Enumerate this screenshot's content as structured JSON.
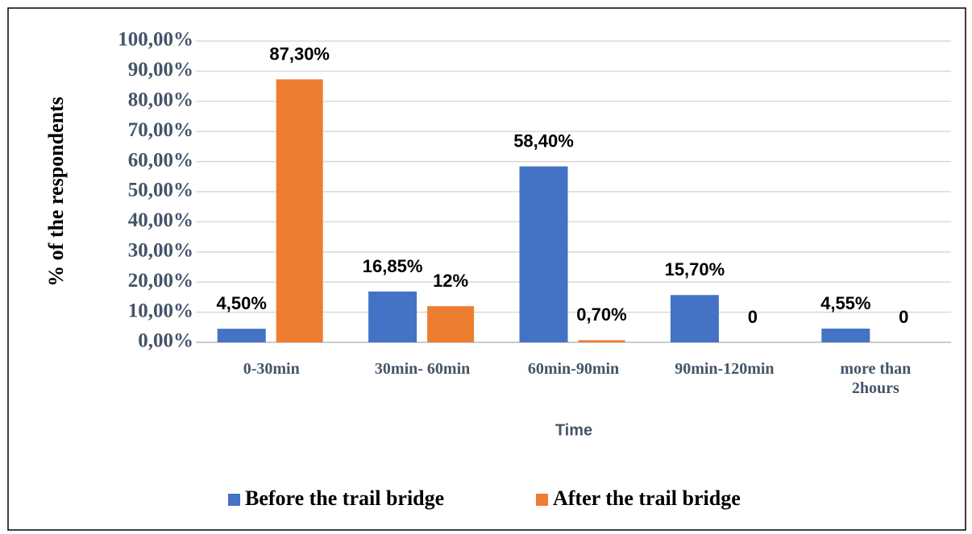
{
  "chart_data": {
    "type": "bar",
    "y_label": "% of the respondents",
    "x_label": "Time",
    "categories": [
      "0-30min",
      "30min- 60min",
      "60min-90min",
      "90min-120min",
      "more than 2hours"
    ],
    "series": [
      {
        "name": "Before the trail bridge",
        "color": "#4472c4",
        "values": [
          4.5,
          16.85,
          58.4,
          15.7,
          4.55
        ],
        "value_labels": [
          "4,50%",
          "16,85%",
          "58,40%",
          "15,70%",
          "4,55%"
        ]
      },
      {
        "name": "After the trail bridge",
        "color": "#ed7d31",
        "values": [
          87.3,
          12,
          0.7,
          0,
          0
        ],
        "value_labels": [
          "87,30%",
          "12%",
          "0,70%",
          "0",
          "0"
        ]
      }
    ],
    "ylim": [
      0,
      100
    ],
    "yticks": [
      {
        "value": 0,
        "label": "0,00%"
      },
      {
        "value": 10,
        "label": "10,00%"
      },
      {
        "value": 20,
        "label": "20,00%"
      },
      {
        "value": 30,
        "label": "30,00%"
      },
      {
        "value": 40,
        "label": "40,00%"
      },
      {
        "value": 50,
        "label": "50,00%"
      },
      {
        "value": 60,
        "label": "60,00%"
      },
      {
        "value": 70,
        "label": "70,00%"
      },
      {
        "value": 80,
        "label": "80,00%"
      },
      {
        "value": 90,
        "label": "90,00%"
      },
      {
        "value": 100,
        "label": "100,00%"
      }
    ],
    "grid": true,
    "legend": "bottom"
  }
}
